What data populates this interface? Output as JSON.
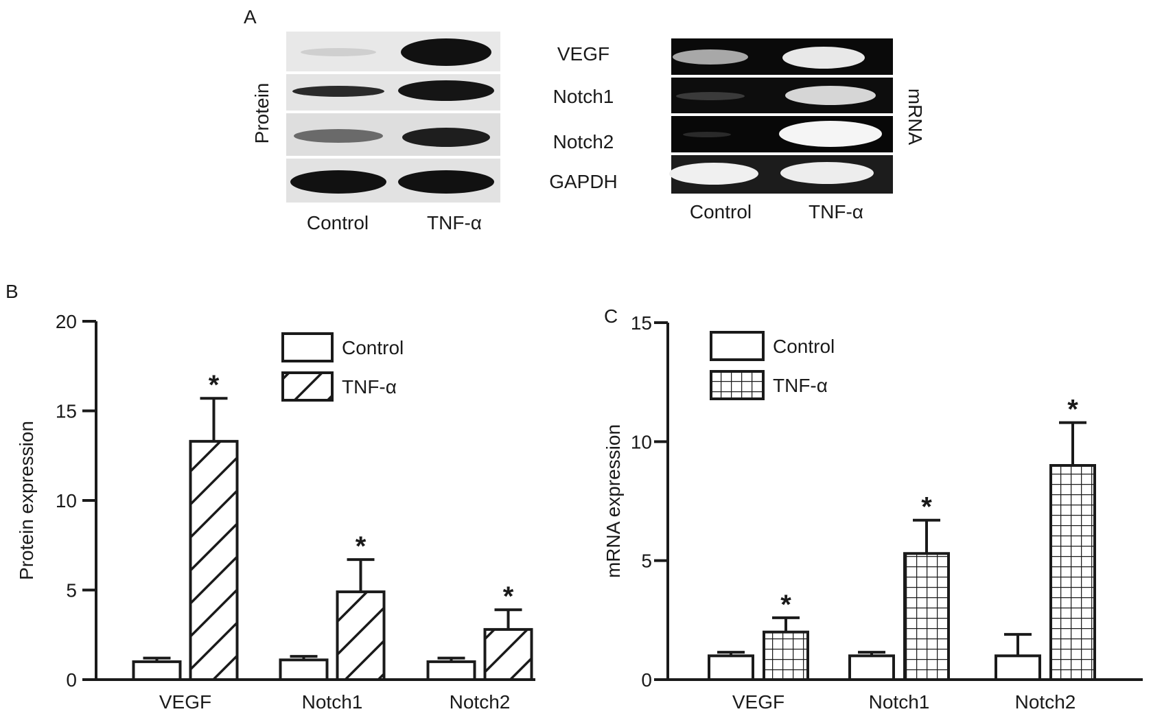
{
  "panels": {
    "a": {
      "letter": "A",
      "protein_label": "Protein",
      "mrna_label": "mRNA",
      "rows": [
        "VEGF",
        "Notch1",
        "Notch2",
        "GAPDH"
      ],
      "protein_lanes": [
        "Control",
        "TNF-α"
      ],
      "mrna_lanes": [
        "Control",
        "TNF-α"
      ]
    },
    "b": {
      "letter": "B"
    },
    "c": {
      "letter": "C"
    }
  },
  "colors": {
    "ink": "#1a1a1a",
    "blot_background": "#e6e6e6",
    "gel_background": "#0a0a0a"
  },
  "chart_data": [
    {
      "type": "bar",
      "panel": "B",
      "ylabel": "Protein expression",
      "xlabel": "",
      "ylim": [
        0,
        20
      ],
      "yticks": [
        0,
        5,
        10,
        15,
        20
      ],
      "categories": [
        "VEGF",
        "Notch1",
        "Notch2"
      ],
      "legend_position": "top-center",
      "series": [
        {
          "name": "Control",
          "pattern": "open",
          "values": [
            1.0,
            1.1,
            1.0
          ],
          "errors": [
            0.2,
            0.2,
            0.2
          ]
        },
        {
          "name": "TNF-α",
          "pattern": "diagonal-hatch",
          "values": [
            13.3,
            4.9,
            2.8
          ],
          "errors": [
            2.4,
            1.8,
            1.1
          ]
        }
      ],
      "annotations": [
        {
          "text": "*",
          "category": "VEGF",
          "series": "TNF-α"
        },
        {
          "text": "*",
          "category": "Notch1",
          "series": "TNF-α"
        },
        {
          "text": "*",
          "category": "Notch2",
          "series": "TNF-α"
        }
      ]
    },
    {
      "type": "bar",
      "panel": "C",
      "ylabel": "mRNA expression",
      "xlabel": "",
      "ylim": [
        0,
        15
      ],
      "yticks": [
        0,
        5,
        10,
        15
      ],
      "categories": [
        "VEGF",
        "Notch1",
        "Notch2"
      ],
      "legend_position": "top-left",
      "series": [
        {
          "name": "Control",
          "pattern": "open",
          "values": [
            1.0,
            1.0,
            1.0
          ],
          "errors": [
            0.15,
            0.15,
            0.9
          ]
        },
        {
          "name": "TNF-α",
          "pattern": "grid-hatch",
          "values": [
            2.0,
            5.3,
            9.0
          ],
          "errors": [
            0.6,
            1.4,
            1.8
          ]
        }
      ],
      "annotations": [
        {
          "text": "*",
          "category": "VEGF",
          "series": "TNF-α"
        },
        {
          "text": "*",
          "category": "Notch1",
          "series": "TNF-α"
        },
        {
          "text": "*",
          "category": "Notch2",
          "series": "TNF-α"
        }
      ]
    }
  ]
}
